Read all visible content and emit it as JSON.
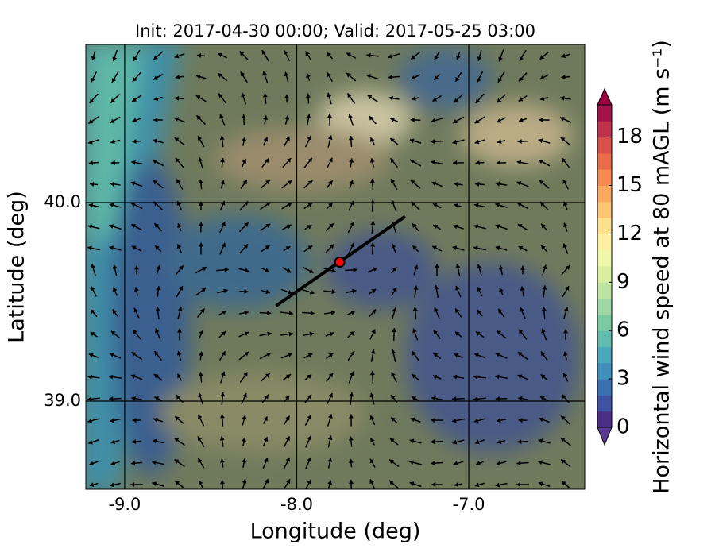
{
  "chart_data": {
    "type": "map",
    "title": "Init: 2017-04-30 00:00; Valid: 2017-05-25 03:00",
    "xlabel": "Longitude (deg)",
    "ylabel": "Latitude (deg)",
    "xlim": [
      -9.226,
      -6.326
    ],
    "ylim": [
      38.556,
      40.796
    ],
    "xticks": [
      {
        "value": -9,
        "label": "-9.0"
      },
      {
        "value": -8,
        "label": "-8.0"
      },
      {
        "value": -7,
        "label": "-7.0"
      }
    ],
    "yticks": [
      {
        "value": 39,
        "label": "39.0"
      },
      {
        "value": 40,
        "label": "40.0"
      }
    ],
    "grid": true,
    "transect": {
      "x": [
        -8.12,
        -7.37
      ],
      "y": [
        39.48,
        39.93
      ],
      "color": "#000000"
    },
    "point": {
      "x": -7.75,
      "y": 39.7,
      "color": "#ff0000"
    },
    "colorbar": {
      "label": "Horizontal wind speed at 80 mAGL (m s⁻¹)",
      "clim": [
        0,
        20
      ],
      "ticks": [
        0,
        3,
        6,
        9,
        12,
        15,
        18
      ],
      "colors": [
        "#4a2f88",
        "#3f53a4",
        "#3a71b3",
        "#3f8fbc",
        "#4aa8bd",
        "#5fbcae",
        "#7bcba2",
        "#9cd7a4",
        "#bce4a0",
        "#d8ef9e",
        "#f0f7a7",
        "#fdf0a0",
        "#fee08b",
        "#fdc574",
        "#fca861",
        "#f68a4f",
        "#ea6b48",
        "#d9504a",
        "#c0324b",
        "#a3124a"
      ],
      "under": "#5b3a96",
      "over": "#9e0142"
    }
  }
}
